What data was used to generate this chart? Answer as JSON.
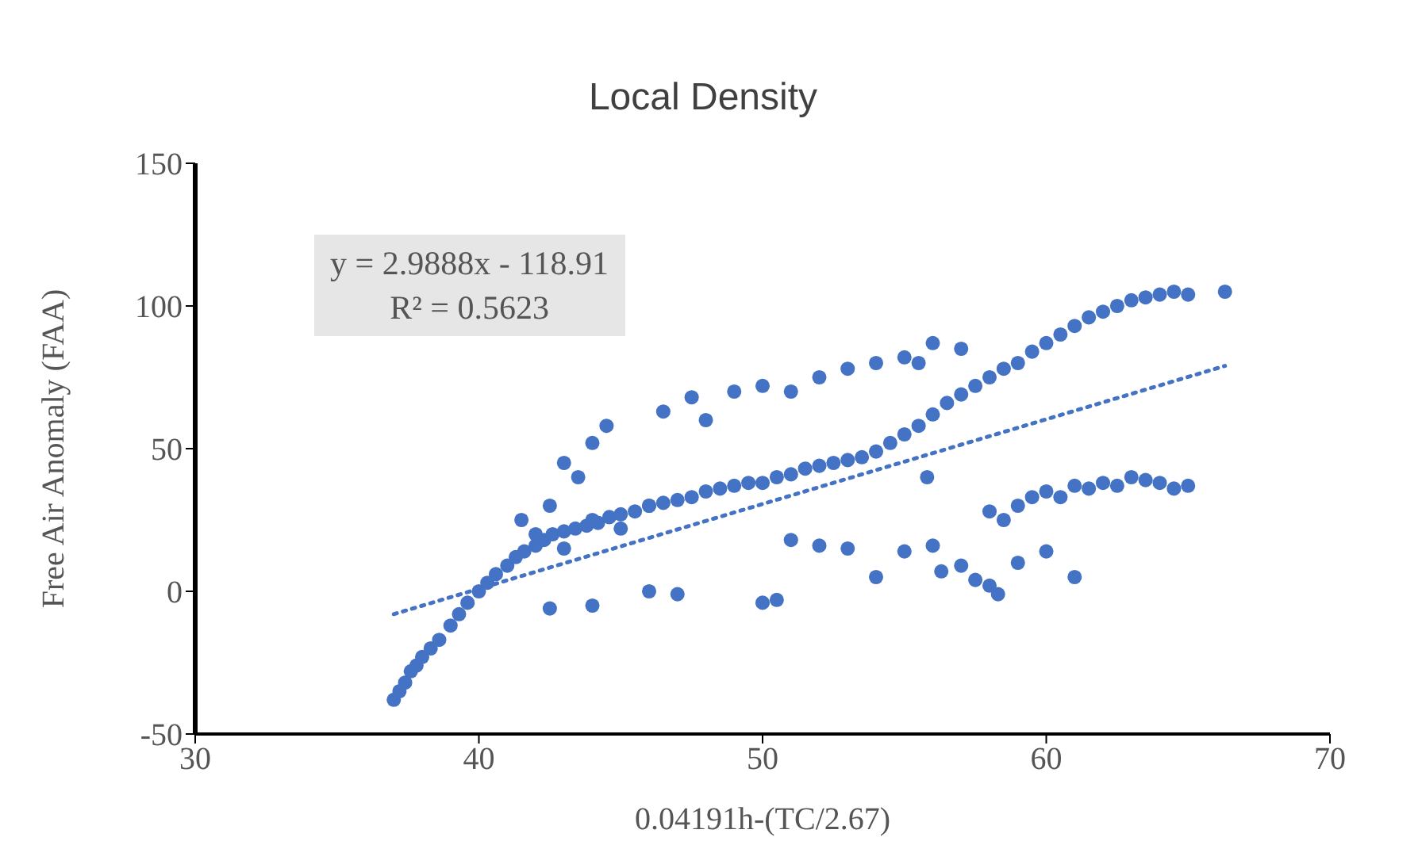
{
  "chart_data": {
    "type": "scatter",
    "title": "Local Density",
    "xlabel": "0.04191h-(TC/2.67)",
    "ylabel": "Free Air Anomaly (FAA)",
    "annotations": [
      "y = 2.9888x - 118.91",
      "R² = 0.5623"
    ],
    "xlim": [
      30,
      70
    ],
    "xticks": [
      30,
      40,
      50,
      60,
      70
    ],
    "ylim": [
      -50,
      150
    ],
    "yticks": [
      -50,
      0,
      50,
      100,
      150
    ],
    "series": [
      {
        "marker": "circle",
        "color": "#4472c4",
        "x": [
          37,
          37.2,
          37.4,
          37.6,
          37.8,
          38,
          38.3,
          38.6,
          39,
          39.3,
          39.6,
          40,
          40.3,
          40.6,
          41,
          41.3,
          41.6,
          42,
          42.3,
          42.6,
          43,
          43.4,
          43.8,
          44.2,
          44.6,
          45,
          45.5,
          46,
          46.5,
          47,
          47.5,
          48,
          48.5,
          49,
          49.5,
          50,
          50.5,
          51,
          51.5,
          52,
          52.5,
          53,
          53.5,
          54,
          54.5,
          55,
          55.5,
          56,
          56.5,
          57,
          57.5,
          58,
          58.5,
          59,
          59.5,
          60,
          60.5,
          61,
          61.5,
          62,
          62.5,
          63,
          63.5,
          64,
          64.5,
          65,
          66.3,
          41.5,
          42.5,
          43,
          43.5,
          44,
          44.5,
          46,
          46.5,
          47.5,
          48,
          49,
          50,
          51,
          52,
          53,
          54,
          55,
          55.5,
          56,
          57,
          42,
          43,
          44,
          45,
          42.5,
          44,
          46,
          47,
          50,
          50.5,
          51,
          52,
          53,
          54,
          55,
          56,
          56.3,
          57,
          57.5,
          58,
          58,
          58.5,
          59,
          59.5,
          60,
          60.5,
          61,
          61.5,
          62,
          62.5,
          63,
          63.5,
          64,
          64.5,
          65,
          59,
          60,
          61,
          58.3,
          55.8
        ],
        "values": [
          -38,
          -35,
          -32,
          -28,
          -26,
          -23,
          -20,
          -17,
          -12,
          -8,
          -4,
          0,
          3,
          6,
          9,
          12,
          14,
          16,
          18,
          20,
          21,
          22,
          23,
          24,
          26,
          27,
          28,
          30,
          31,
          32,
          33,
          35,
          36,
          37,
          38,
          38,
          40,
          41,
          43,
          44,
          45,
          46,
          47,
          49,
          52,
          55,
          58,
          62,
          66,
          69,
          72,
          75,
          78,
          80,
          84,
          87,
          90,
          93,
          96,
          98,
          100,
          102,
          103,
          104,
          105,
          104,
          105,
          25,
          30,
          45,
          40,
          52,
          58,
          30,
          63,
          68,
          60,
          70,
          72,
          70,
          75,
          78,
          80,
          82,
          80,
          87,
          85,
          20,
          15,
          25,
          22,
          -6,
          -5,
          0,
          -1,
          -4,
          -3,
          18,
          16,
          15,
          5,
          14,
          16,
          7,
          9,
          4,
          2,
          28,
          25,
          30,
          33,
          35,
          33,
          37,
          36,
          38,
          37,
          40,
          39,
          38,
          36,
          37,
          10,
          14,
          5,
          -1,
          40
        ]
      },
      {
        "type": "line",
        "marker": "none",
        "color": "#4472c4",
        "line_style": "dotted",
        "x": [
          37,
          66.3
        ],
        "values": [
          -8,
          79
        ]
      }
    ]
  }
}
